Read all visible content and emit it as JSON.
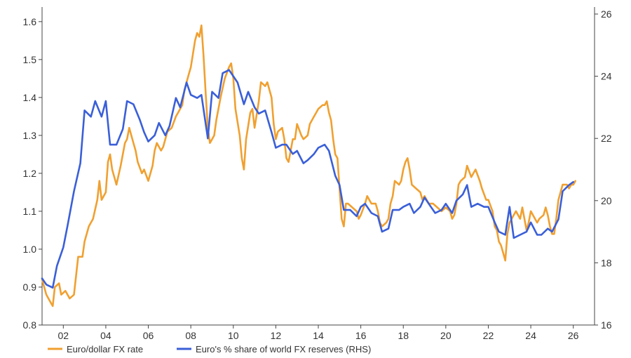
{
  "chart_data": {
    "type": "line",
    "title": "",
    "xlabel": "",
    "ylabel": "",
    "x_range": [
      2001,
      2027
    ],
    "x_ticks": [
      2002,
      2004,
      2006,
      2008,
      2010,
      2012,
      2014,
      2016,
      2018,
      2020,
      2022,
      2024,
      2026
    ],
    "x_tick_labels": [
      "02",
      "04",
      "06",
      "08",
      "10",
      "12",
      "14",
      "16",
      "18",
      "20",
      "22",
      "24",
      "26"
    ],
    "y_left": {
      "range": [
        0.8,
        1.62
      ],
      "ticks": [
        0.8,
        0.9,
        1.0,
        1.1,
        1.2,
        1.3,
        1.4,
        1.5,
        1.6
      ],
      "tick_labels": [
        "0.8",
        "0.9",
        "1.0",
        "1.1",
        "1.2",
        "1.3",
        "1.4",
        "1.5",
        "1.6"
      ]
    },
    "y_right": {
      "range": [
        16,
        26
      ],
      "ticks": [
        16,
        18,
        20,
        22,
        24,
        26
      ],
      "tick_labels": [
        "16",
        "18",
        "20",
        "22",
        "24",
        "26"
      ]
    },
    "grid": false,
    "legend_position": "bottom-left",
    "series": [
      {
        "name": "Euro/dollar FX rate",
        "axis": "left",
        "color": "#f0a030",
        "points": [
          [
            2001.0,
            0.92
          ],
          [
            2001.2,
            0.88
          ],
          [
            2001.4,
            0.86
          ],
          [
            2001.5,
            0.85
          ],
          [
            2001.6,
            0.9
          ],
          [
            2001.8,
            0.91
          ],
          [
            2001.9,
            0.88
          ],
          [
            2002.1,
            0.89
          ],
          [
            2002.3,
            0.87
          ],
          [
            2002.5,
            0.88
          ],
          [
            2002.7,
            0.98
          ],
          [
            2002.9,
            0.98
          ],
          [
            2003.0,
            1.02
          ],
          [
            2003.2,
            1.06
          ],
          [
            2003.4,
            1.08
          ],
          [
            2003.6,
            1.13
          ],
          [
            2003.7,
            1.18
          ],
          [
            2003.8,
            1.13
          ],
          [
            2004.0,
            1.15
          ],
          [
            2004.1,
            1.23
          ],
          [
            2004.2,
            1.25
          ],
          [
            2004.3,
            1.21
          ],
          [
            2004.5,
            1.17
          ],
          [
            2004.7,
            1.22
          ],
          [
            2004.9,
            1.28
          ],
          [
            2005.0,
            1.29
          ],
          [
            2005.1,
            1.32
          ],
          [
            2005.3,
            1.28
          ],
          [
            2005.4,
            1.26
          ],
          [
            2005.5,
            1.23
          ],
          [
            2005.7,
            1.2
          ],
          [
            2005.8,
            1.21
          ],
          [
            2006.0,
            1.18
          ],
          [
            2006.2,
            1.22
          ],
          [
            2006.3,
            1.26
          ],
          [
            2006.4,
            1.28
          ],
          [
            2006.6,
            1.26
          ],
          [
            2006.7,
            1.27
          ],
          [
            2006.9,
            1.31
          ],
          [
            2007.1,
            1.32
          ],
          [
            2007.3,
            1.35
          ],
          [
            2007.4,
            1.36
          ],
          [
            2007.6,
            1.38
          ],
          [
            2007.7,
            1.42
          ],
          [
            2007.9,
            1.46
          ],
          [
            2008.0,
            1.48
          ],
          [
            2008.2,
            1.55
          ],
          [
            2008.3,
            1.57
          ],
          [
            2008.4,
            1.56
          ],
          [
            2008.5,
            1.59
          ],
          [
            2008.6,
            1.51
          ],
          [
            2008.7,
            1.41
          ],
          [
            2008.8,
            1.32
          ],
          [
            2008.9,
            1.28
          ],
          [
            2009.0,
            1.29
          ],
          [
            2009.1,
            1.3
          ],
          [
            2009.2,
            1.34
          ],
          [
            2009.4,
            1.4
          ],
          [
            2009.6,
            1.45
          ],
          [
            2009.8,
            1.48
          ],
          [
            2009.9,
            1.49
          ],
          [
            2010.0,
            1.45
          ],
          [
            2010.1,
            1.37
          ],
          [
            2010.3,
            1.3
          ],
          [
            2010.4,
            1.24
          ],
          [
            2010.5,
            1.21
          ],
          [
            2010.6,
            1.29
          ],
          [
            2010.8,
            1.36
          ],
          [
            2010.9,
            1.37
          ],
          [
            2011.0,
            1.32
          ],
          [
            2011.2,
            1.39
          ],
          [
            2011.3,
            1.44
          ],
          [
            2011.5,
            1.43
          ],
          [
            2011.6,
            1.44
          ],
          [
            2011.8,
            1.4
          ],
          [
            2011.9,
            1.33
          ],
          [
            2012.0,
            1.29
          ],
          [
            2012.1,
            1.31
          ],
          [
            2012.3,
            1.32
          ],
          [
            2012.4,
            1.29
          ],
          [
            2012.5,
            1.24
          ],
          [
            2012.6,
            1.23
          ],
          [
            2012.8,
            1.29
          ],
          [
            2012.9,
            1.29
          ],
          [
            2013.0,
            1.33
          ],
          [
            2013.2,
            1.3
          ],
          [
            2013.3,
            1.29
          ],
          [
            2013.5,
            1.3
          ],
          [
            2013.6,
            1.33
          ],
          [
            2013.8,
            1.35
          ],
          [
            2013.9,
            1.36
          ],
          [
            2014.0,
            1.37
          ],
          [
            2014.2,
            1.38
          ],
          [
            2014.3,
            1.38
          ],
          [
            2014.4,
            1.39
          ],
          [
            2014.5,
            1.36
          ],
          [
            2014.6,
            1.34
          ],
          [
            2014.7,
            1.29
          ],
          [
            2014.8,
            1.25
          ],
          [
            2014.9,
            1.24
          ],
          [
            2015.0,
            1.16
          ],
          [
            2015.1,
            1.08
          ],
          [
            2015.2,
            1.06
          ],
          [
            2015.3,
            1.12
          ],
          [
            2015.4,
            1.12
          ],
          [
            2015.6,
            1.11
          ],
          [
            2015.8,
            1.1
          ],
          [
            2015.9,
            1.08
          ],
          [
            2016.0,
            1.09
          ],
          [
            2016.2,
            1.12
          ],
          [
            2016.3,
            1.14
          ],
          [
            2016.5,
            1.12
          ],
          [
            2016.7,
            1.12
          ],
          [
            2016.8,
            1.1
          ],
          [
            2016.9,
            1.07
          ],
          [
            2017.0,
            1.06
          ],
          [
            2017.2,
            1.07
          ],
          [
            2017.3,
            1.08
          ],
          [
            2017.4,
            1.12
          ],
          [
            2017.5,
            1.14
          ],
          [
            2017.6,
            1.18
          ],
          [
            2017.8,
            1.17
          ],
          [
            2017.9,
            1.18
          ],
          [
            2018.0,
            1.21
          ],
          [
            2018.1,
            1.23
          ],
          [
            2018.2,
            1.24
          ],
          [
            2018.3,
            1.21
          ],
          [
            2018.4,
            1.17
          ],
          [
            2018.6,
            1.16
          ],
          [
            2018.8,
            1.15
          ],
          [
            2018.9,
            1.13
          ],
          [
            2019.0,
            1.14
          ],
          [
            2019.2,
            1.12
          ],
          [
            2019.4,
            1.12
          ],
          [
            2019.6,
            1.11
          ],
          [
            2019.8,
            1.1
          ],
          [
            2020.0,
            1.11
          ],
          [
            2020.2,
            1.1
          ],
          [
            2020.3,
            1.08
          ],
          [
            2020.4,
            1.09
          ],
          [
            2020.5,
            1.12
          ],
          [
            2020.6,
            1.17
          ],
          [
            2020.7,
            1.18
          ],
          [
            2020.9,
            1.19
          ],
          [
            2021.0,
            1.22
          ],
          [
            2021.2,
            1.19
          ],
          [
            2021.3,
            1.2
          ],
          [
            2021.4,
            1.21
          ],
          [
            2021.6,
            1.18
          ],
          [
            2021.7,
            1.16
          ],
          [
            2021.9,
            1.13
          ],
          [
            2022.0,
            1.13
          ],
          [
            2022.2,
            1.1
          ],
          [
            2022.3,
            1.06
          ],
          [
            2022.4,
            1.05
          ],
          [
            2022.5,
            1.02
          ],
          [
            2022.6,
            1.01
          ],
          [
            2022.7,
            0.99
          ],
          [
            2022.8,
            0.97
          ],
          [
            2022.9,
            1.04
          ],
          [
            2023.0,
            1.07
          ],
          [
            2023.2,
            1.09
          ],
          [
            2023.3,
            1.1
          ],
          [
            2023.4,
            1.09
          ],
          [
            2023.5,
            1.08
          ],
          [
            2023.6,
            1.11
          ],
          [
            2023.7,
            1.08
          ],
          [
            2023.8,
            1.05
          ],
          [
            2023.9,
            1.07
          ],
          [
            2024.0,
            1.1
          ],
          [
            2024.2,
            1.08
          ],
          [
            2024.3,
            1.07
          ],
          [
            2024.4,
            1.08
          ],
          [
            2024.6,
            1.09
          ],
          [
            2024.7,
            1.11
          ],
          [
            2024.8,
            1.09
          ],
          [
            2024.9,
            1.06
          ],
          [
            2025.0,
            1.04
          ],
          [
            2025.1,
            1.04
          ],
          [
            2025.2,
            1.08
          ],
          [
            2025.3,
            1.13
          ],
          [
            2025.4,
            1.15
          ],
          [
            2025.5,
            1.17
          ],
          [
            2025.7,
            1.17
          ],
          [
            2025.8,
            1.16
          ],
          [
            2025.9,
            1.17
          ],
          [
            2026.0,
            1.17
          ],
          [
            2026.1,
            1.18
          ]
        ]
      },
      {
        "name": "Euro's % share of world FX reserves (RHS)",
        "axis": "right",
        "color": "#3a5fd8",
        "points": [
          [
            2001.0,
            17.5
          ],
          [
            2001.2,
            17.3
          ],
          [
            2001.5,
            17.2
          ],
          [
            2001.7,
            17.9
          ],
          [
            2002.0,
            18.5
          ],
          [
            2002.2,
            19.2
          ],
          [
            2002.5,
            20.3
          ],
          [
            2002.8,
            21.2
          ],
          [
            2003.0,
            22.9
          ],
          [
            2003.3,
            22.7
          ],
          [
            2003.5,
            23.2
          ],
          [
            2003.8,
            22.7
          ],
          [
            2004.0,
            23.2
          ],
          [
            2004.2,
            21.8
          ],
          [
            2004.5,
            21.8
          ],
          [
            2004.8,
            22.3
          ],
          [
            2005.0,
            23.2
          ],
          [
            2005.3,
            23.1
          ],
          [
            2005.6,
            22.6
          ],
          [
            2005.8,
            22.2
          ],
          [
            2006.0,
            21.9
          ],
          [
            2006.3,
            22.1
          ],
          [
            2006.5,
            22.5
          ],
          [
            2006.8,
            22.1
          ],
          [
            2007.0,
            22.4
          ],
          [
            2007.3,
            23.3
          ],
          [
            2007.5,
            23.0
          ],
          [
            2007.8,
            23.8
          ],
          [
            2008.0,
            23.4
          ],
          [
            2008.3,
            23.3
          ],
          [
            2008.5,
            23.4
          ],
          [
            2008.8,
            22.0
          ],
          [
            2009.0,
            23.5
          ],
          [
            2009.3,
            23.3
          ],
          [
            2009.5,
            24.1
          ],
          [
            2009.8,
            24.2
          ],
          [
            2010.0,
            24.0
          ],
          [
            2010.2,
            23.8
          ],
          [
            2010.5,
            23.1
          ],
          [
            2010.7,
            23.5
          ],
          [
            2011.0,
            23.0
          ],
          [
            2011.2,
            22.8
          ],
          [
            2011.5,
            22.9
          ],
          [
            2011.8,
            22.2
          ],
          [
            2012.0,
            21.7
          ],
          [
            2012.3,
            21.8
          ],
          [
            2012.5,
            21.8
          ],
          [
            2012.8,
            21.5
          ],
          [
            2013.0,
            21.6
          ],
          [
            2013.3,
            21.2
          ],
          [
            2013.5,
            21.3
          ],
          [
            2013.8,
            21.5
          ],
          [
            2014.0,
            21.7
          ],
          [
            2014.3,
            21.8
          ],
          [
            2014.5,
            21.6
          ],
          [
            2014.8,
            20.8
          ],
          [
            2015.0,
            20.5
          ],
          [
            2015.2,
            19.7
          ],
          [
            2015.5,
            19.7
          ],
          [
            2015.8,
            19.5
          ],
          [
            2016.0,
            19.8
          ],
          [
            2016.2,
            19.9
          ],
          [
            2016.5,
            19.6
          ],
          [
            2016.8,
            19.5
          ],
          [
            2017.0,
            19.0
          ],
          [
            2017.3,
            19.1
          ],
          [
            2017.5,
            19.7
          ],
          [
            2017.8,
            19.7
          ],
          [
            2018.0,
            19.8
          ],
          [
            2018.3,
            19.9
          ],
          [
            2018.5,
            19.6
          ],
          [
            2018.8,
            19.8
          ],
          [
            2019.0,
            20.1
          ],
          [
            2019.3,
            19.8
          ],
          [
            2019.5,
            19.6
          ],
          [
            2019.8,
            19.7
          ],
          [
            2020.0,
            19.9
          ],
          [
            2020.3,
            19.6
          ],
          [
            2020.5,
            20.0
          ],
          [
            2020.8,
            20.2
          ],
          [
            2021.0,
            20.5
          ],
          [
            2021.2,
            19.8
          ],
          [
            2021.5,
            19.9
          ],
          [
            2021.8,
            19.8
          ],
          [
            2022.0,
            19.8
          ],
          [
            2022.3,
            19.3
          ],
          [
            2022.5,
            19.0
          ],
          [
            2022.8,
            18.9
          ],
          [
            2023.0,
            19.8
          ],
          [
            2023.2,
            18.8
          ],
          [
            2023.5,
            18.9
          ],
          [
            2023.8,
            19.0
          ],
          [
            2024.0,
            19.3
          ],
          [
            2024.3,
            18.9
          ],
          [
            2024.5,
            18.9
          ],
          [
            2024.8,
            19.1
          ],
          [
            2025.0,
            19.0
          ],
          [
            2025.3,
            19.4
          ],
          [
            2025.5,
            20.3
          ],
          [
            2025.8,
            20.5
          ],
          [
            2026.0,
            20.6
          ]
        ]
      }
    ]
  }
}
